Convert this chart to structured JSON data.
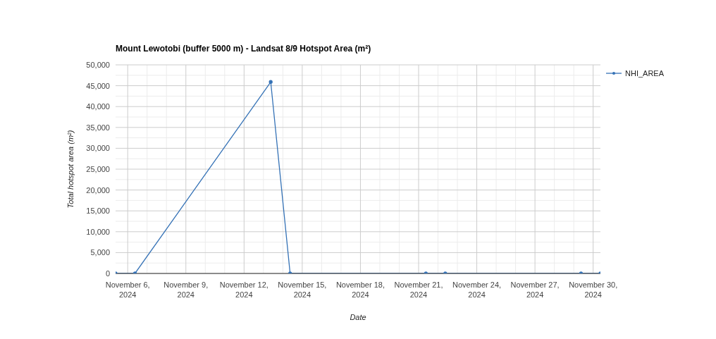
{
  "chart_data": {
    "type": "line",
    "title": "Mount Lewotobi (buffer 5000 m) - Landsat 8/9 Hotspot Area (m²)",
    "xlabel": "Date",
    "ylabel": "Total hotspot area (m²)",
    "x": [
      "2024-11-05T09:00",
      "2024-11-06T09:00",
      "2024-11-13T09:00",
      "2024-11-14T09:00",
      "2024-11-21T09:00",
      "2024-11-22T09:00",
      "2024-11-29T09:00",
      "2024-11-30T09:00"
    ],
    "series": [
      {
        "name": "NHI_AREA",
        "color": "#3572b6",
        "values": [
          0,
          0,
          45900,
          0,
          0,
          0,
          0,
          0
        ]
      }
    ],
    "xlim": [
      "2024-11-05T09:00",
      "2024-11-30T09:00"
    ],
    "xticks": [
      {
        "value": "2024-11-06",
        "label": "November 6, 2024"
      },
      {
        "value": "2024-11-09",
        "label": "November 9, 2024"
      },
      {
        "value": "2024-11-12",
        "label": "November 12, 2024"
      },
      {
        "value": "2024-11-15",
        "label": "November 15, 2024"
      },
      {
        "value": "2024-11-18",
        "label": "November 18, 2024"
      },
      {
        "value": "2024-11-21",
        "label": "November 21, 2024"
      },
      {
        "value": "2024-11-24",
        "label": "November 24, 2024"
      },
      {
        "value": "2024-11-27",
        "label": "November 27, 2024"
      },
      {
        "value": "2024-11-30",
        "label": "November 30, 2024"
      }
    ],
    "ylim": [
      0,
      50000
    ],
    "yticks": [
      {
        "value": 0,
        "label": "0"
      },
      {
        "value": 5000,
        "label": "5,000"
      },
      {
        "value": 10000,
        "label": "10,000"
      },
      {
        "value": 15000,
        "label": "15,000"
      },
      {
        "value": 20000,
        "label": "20,000"
      },
      {
        "value": 25000,
        "label": "25,000"
      },
      {
        "value": 30000,
        "label": "30,000"
      },
      {
        "value": 35000,
        "label": "35,000"
      },
      {
        "value": 40000,
        "label": "40,000"
      },
      {
        "value": 45000,
        "label": "45,000"
      },
      {
        "value": 50000,
        "label": "50,000"
      }
    ],
    "grid": true,
    "legend": "top right",
    "marker": "circle",
    "line_style": "solid"
  }
}
